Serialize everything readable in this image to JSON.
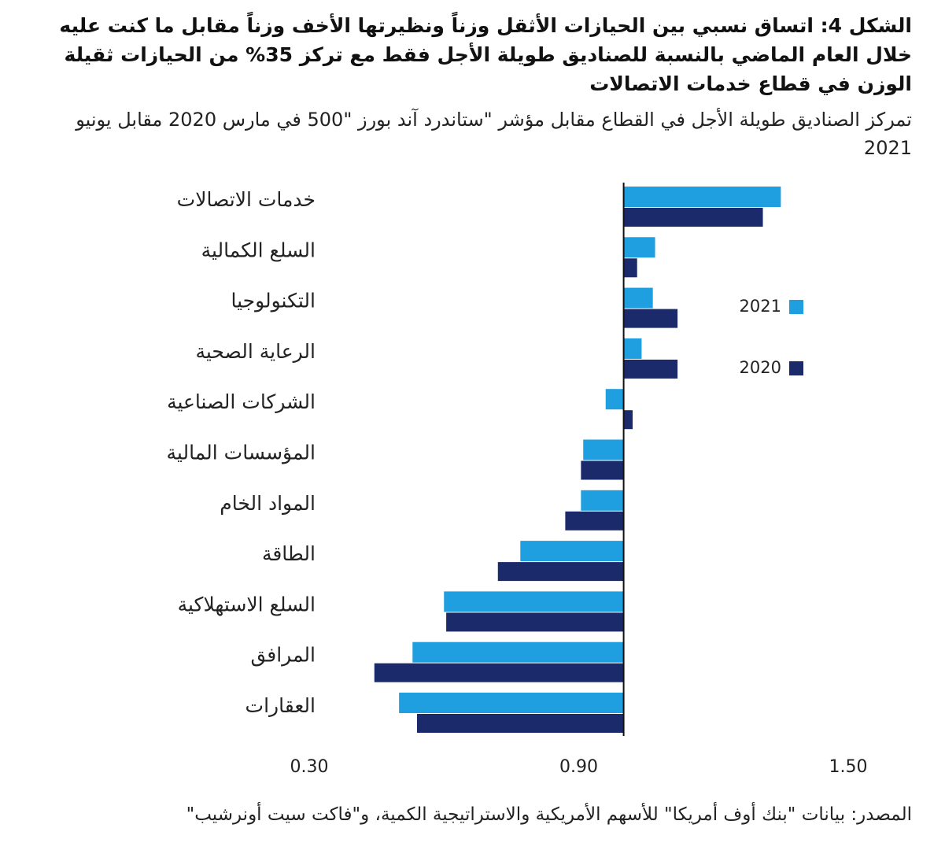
{
  "chart_data": {
    "type": "hbar",
    "title": "الشكل 4: اتساق نسبي بين الحيازات الأثقل وزناً ونظيرتها الأخف وزناً مقابل ما كنت عليه خلال العام الماضي بالنسبة للصناديق طويلة الأجل فقط مع تركز 35% من الحيازات ثقيلة الوزن في قطاع خدمات الاتصالات",
    "subtitle": "تمركز الصناديق طويلة الأجل في القطاع مقابل مؤشر \"ستاندرد آند بورز \"500 في مارس 2020 مقابل يونيو 2021",
    "source": "المصدر: بيانات \"بنك أوف أمريكا\" للأسهم الأمريكية والاستراتيجية الكمية، و\"فاكت سيت أونرشيب\"",
    "categories": [
      "خدمات الاتصالات",
      "السلع الكمالية",
      "التكنولوجيا",
      "الرعاية الصحية",
      "الشركات الصناعية",
      "المؤسسات المالية",
      "المواد الخام",
      "الطاقة",
      "السلع الاستهلاكية",
      "المرافق",
      "العقارات"
    ],
    "series": [
      {
        "name": "2021",
        "color": "#1f9fe0",
        "values": [
          1.35,
          1.07,
          1.065,
          1.04,
          0.96,
          0.91,
          0.905,
          0.77,
          0.6,
          0.53,
          0.5
        ]
      },
      {
        "name": "2020",
        "color": "#1b2a6b",
        "values": [
          1.31,
          1.03,
          1.12,
          1.12,
          1.02,
          0.905,
          0.87,
          0.72,
          0.605,
          0.445,
          0.54
        ]
      }
    ],
    "bar_base": 1,
    "xlim": [
      0.3,
      1.5
    ],
    "xticks": [
      {
        "value": 0.3,
        "label": "0.30"
      },
      {
        "value": 0.9,
        "label": "0.90"
      },
      {
        "value": 1.5,
        "label": "1.50"
      }
    ],
    "legend_position": "right"
  }
}
